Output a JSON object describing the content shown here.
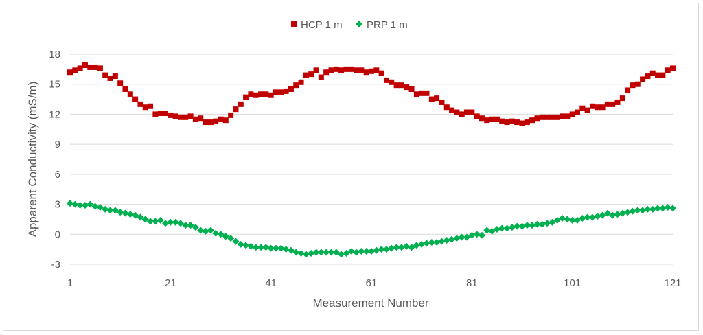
{
  "chart_data": {
    "type": "scatter",
    "title": "",
    "xlabel": "Measurement Number",
    "ylabel": "Apparent Conductivity (mS/m)",
    "xlim": [
      1,
      121
    ],
    "ylim": [
      -3,
      18
    ],
    "x_ticks": [
      "1",
      "21",
      "41",
      "61",
      "81",
      "101",
      "121"
    ],
    "y_ticks": [
      "-3",
      "0",
      "3",
      "6",
      "9",
      "12",
      "15",
      "18"
    ],
    "grid": true,
    "legend_position": "top",
    "series": [
      {
        "name": "HCP 1 m",
        "marker": "square",
        "color": "#c00000",
        "points": [
          [
            1,
            16.2
          ],
          [
            2,
            16.4
          ],
          [
            3,
            16.6
          ],
          [
            4,
            16.9
          ],
          [
            5,
            16.7
          ],
          [
            6,
            16.7
          ],
          [
            7,
            16.6
          ],
          [
            8,
            15.9
          ],
          [
            9,
            15.6
          ],
          [
            10,
            15.8
          ],
          [
            11,
            15.1
          ],
          [
            12,
            14.5
          ],
          [
            13,
            14.0
          ],
          [
            14,
            13.5
          ],
          [
            15,
            13.0
          ],
          [
            16,
            12.7
          ],
          [
            17,
            12.8
          ],
          [
            18,
            12.0
          ],
          [
            19,
            12.1
          ],
          [
            20,
            12.1
          ],
          [
            21,
            11.9
          ],
          [
            22,
            11.8
          ],
          [
            23,
            11.7
          ],
          [
            24,
            11.7
          ],
          [
            25,
            11.8
          ],
          [
            26,
            11.5
          ],
          [
            27,
            11.6
          ],
          [
            28,
            11.2
          ],
          [
            29,
            11.2
          ],
          [
            30,
            11.3
          ],
          [
            31,
            11.5
          ],
          [
            32,
            11.4
          ],
          [
            33,
            11.9
          ],
          [
            34,
            12.5
          ],
          [
            35,
            13.0
          ],
          [
            36,
            13.7
          ],
          [
            37,
            14.0
          ],
          [
            38,
            13.9
          ],
          [
            39,
            14.0
          ],
          [
            40,
            14.0
          ],
          [
            41,
            13.9
          ],
          [
            42,
            14.2
          ],
          [
            43,
            14.2
          ],
          [
            44,
            14.3
          ],
          [
            45,
            14.5
          ],
          [
            46,
            14.9
          ],
          [
            47,
            15.2
          ],
          [
            48,
            15.9
          ],
          [
            49,
            16.0
          ],
          [
            50,
            16.4
          ],
          [
            51,
            15.7
          ],
          [
            52,
            16.2
          ],
          [
            53,
            16.4
          ],
          [
            54,
            16.5
          ],
          [
            55,
            16.4
          ],
          [
            56,
            16.5
          ],
          [
            57,
            16.5
          ],
          [
            58,
            16.4
          ],
          [
            59,
            16.4
          ],
          [
            60,
            16.2
          ],
          [
            61,
            16.3
          ],
          [
            62,
            16.4
          ],
          [
            63,
            16.1
          ],
          [
            64,
            15.4
          ],
          [
            65,
            15.2
          ],
          [
            66,
            14.9
          ],
          [
            67,
            14.9
          ],
          [
            68,
            14.7
          ],
          [
            69,
            14.5
          ],
          [
            70,
            14.0
          ],
          [
            71,
            14.1
          ],
          [
            72,
            14.1
          ],
          [
            73,
            13.5
          ],
          [
            74,
            13.6
          ],
          [
            75,
            13.2
          ],
          [
            76,
            12.7
          ],
          [
            77,
            12.4
          ],
          [
            78,
            12.2
          ],
          [
            79,
            12.0
          ],
          [
            80,
            12.2
          ],
          [
            81,
            12.2
          ],
          [
            82,
            11.8
          ],
          [
            83,
            11.6
          ],
          [
            84,
            11.4
          ],
          [
            85,
            11.5
          ],
          [
            86,
            11.5
          ],
          [
            87,
            11.3
          ],
          [
            88,
            11.2
          ],
          [
            89,
            11.3
          ],
          [
            90,
            11.2
          ],
          [
            91,
            11.1
          ],
          [
            92,
            11.2
          ],
          [
            93,
            11.4
          ],
          [
            94,
            11.6
          ],
          [
            95,
            11.7
          ],
          [
            96,
            11.7
          ],
          [
            97,
            11.7
          ],
          [
            98,
            11.7
          ],
          [
            99,
            11.8
          ],
          [
            100,
            11.8
          ],
          [
            101,
            12.0
          ],
          [
            102,
            12.2
          ],
          [
            103,
            12.6
          ],
          [
            104,
            12.4
          ],
          [
            105,
            12.8
          ],
          [
            106,
            12.7
          ],
          [
            107,
            12.7
          ],
          [
            108,
            13.0
          ],
          [
            109,
            13.0
          ],
          [
            110,
            13.2
          ],
          [
            111,
            13.6
          ],
          [
            112,
            14.4
          ],
          [
            113,
            14.9
          ],
          [
            114,
            15.0
          ],
          [
            115,
            15.5
          ],
          [
            116,
            15.8
          ],
          [
            117,
            16.1
          ],
          [
            118,
            15.9
          ],
          [
            119,
            15.9
          ],
          [
            120,
            16.4
          ],
          [
            121,
            16.6
          ]
        ]
      },
      {
        "name": "PRP 1 m",
        "marker": "diamond",
        "color": "#00b050",
        "points": [
          [
            1,
            3.1
          ],
          [
            2,
            3.0
          ],
          [
            3,
            2.9
          ],
          [
            4,
            2.9
          ],
          [
            5,
            3.0
          ],
          [
            6,
            2.8
          ],
          [
            7,
            2.7
          ],
          [
            8,
            2.5
          ],
          [
            9,
            2.4
          ],
          [
            10,
            2.4
          ],
          [
            11,
            2.2
          ],
          [
            12,
            2.1
          ],
          [
            13,
            2.0
          ],
          [
            14,
            1.9
          ],
          [
            15,
            1.7
          ],
          [
            16,
            1.5
          ],
          [
            17,
            1.3
          ],
          [
            18,
            1.3
          ],
          [
            19,
            1.4
          ],
          [
            20,
            1.1
          ],
          [
            21,
            1.2
          ],
          [
            22,
            1.2
          ],
          [
            23,
            1.1
          ],
          [
            24,
            0.9
          ],
          [
            25,
            0.9
          ],
          [
            26,
            0.7
          ],
          [
            27,
            0.4
          ],
          [
            28,
            0.3
          ],
          [
            29,
            0.4
          ],
          [
            30,
            0.1
          ],
          [
            31,
            0.0
          ],
          [
            32,
            -0.2
          ],
          [
            33,
            -0.4
          ],
          [
            34,
            -0.7
          ],
          [
            35,
            -1.0
          ],
          [
            36,
            -1.1
          ],
          [
            37,
            -1.2
          ],
          [
            38,
            -1.3
          ],
          [
            39,
            -1.3
          ],
          [
            40,
            -1.3
          ],
          [
            41,
            -1.4
          ],
          [
            42,
            -1.4
          ],
          [
            43,
            -1.4
          ],
          [
            44,
            -1.5
          ],
          [
            45,
            -1.6
          ],
          [
            46,
            -1.8
          ],
          [
            47,
            -1.9
          ],
          [
            48,
            -2.0
          ],
          [
            49,
            -1.9
          ],
          [
            50,
            -1.8
          ],
          [
            51,
            -1.8
          ],
          [
            52,
            -1.8
          ],
          [
            53,
            -1.8
          ],
          [
            54,
            -1.8
          ],
          [
            55,
            -2.0
          ],
          [
            56,
            -1.9
          ],
          [
            57,
            -1.7
          ],
          [
            58,
            -1.8
          ],
          [
            59,
            -1.7
          ],
          [
            60,
            -1.7
          ],
          [
            61,
            -1.7
          ],
          [
            62,
            -1.6
          ],
          [
            63,
            -1.5
          ],
          [
            64,
            -1.5
          ],
          [
            65,
            -1.4
          ],
          [
            66,
            -1.3
          ],
          [
            67,
            -1.3
          ],
          [
            68,
            -1.2
          ],
          [
            69,
            -1.3
          ],
          [
            70,
            -1.1
          ],
          [
            71,
            -1.0
          ],
          [
            72,
            -0.9
          ],
          [
            73,
            -0.8
          ],
          [
            74,
            -0.8
          ],
          [
            75,
            -0.7
          ],
          [
            76,
            -0.6
          ],
          [
            77,
            -0.5
          ],
          [
            78,
            -0.4
          ],
          [
            79,
            -0.3
          ],
          [
            80,
            -0.3
          ],
          [
            81,
            -0.1
          ],
          [
            82,
            0.0
          ],
          [
            83,
            -0.1
          ],
          [
            84,
            0.4
          ],
          [
            85,
            0.3
          ],
          [
            86,
            0.5
          ],
          [
            87,
            0.6
          ],
          [
            88,
            0.6
          ],
          [
            89,
            0.7
          ],
          [
            90,
            0.8
          ],
          [
            91,
            0.8
          ],
          [
            92,
            0.9
          ],
          [
            93,
            0.9
          ],
          [
            94,
            1.0
          ],
          [
            95,
            1.0
          ],
          [
            96,
            1.1
          ],
          [
            97,
            1.2
          ],
          [
            98,
            1.4
          ],
          [
            99,
            1.6
          ],
          [
            100,
            1.5
          ],
          [
            101,
            1.4
          ],
          [
            102,
            1.4
          ],
          [
            103,
            1.6
          ],
          [
            104,
            1.7
          ],
          [
            105,
            1.7
          ],
          [
            106,
            1.8
          ],
          [
            107,
            1.9
          ],
          [
            108,
            2.1
          ],
          [
            109,
            1.9
          ],
          [
            110,
            2.0
          ],
          [
            111,
            2.1
          ],
          [
            112,
            2.2
          ],
          [
            113,
            2.3
          ],
          [
            114,
            2.4
          ],
          [
            115,
            2.4
          ],
          [
            116,
            2.5
          ],
          [
            117,
            2.5
          ],
          [
            118,
            2.6
          ],
          [
            119,
            2.6
          ],
          [
            120,
            2.7
          ],
          [
            121,
            2.6
          ]
        ]
      }
    ]
  }
}
